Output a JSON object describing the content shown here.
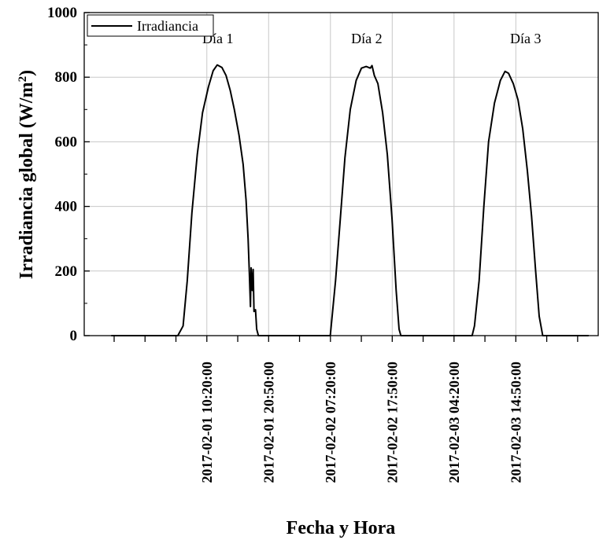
{
  "chart_data": {
    "type": "line",
    "xlabel": "Fecha y Hora",
    "ylabel": "Irradiancia global (W/m",
    "ylabel_sup": "2",
    "ylabel_end": ")",
    "x_axis_units": "hours since 2017-02-01 00:00",
    "xlim": [
      -10.5,
      76.83
    ],
    "ylim": [
      0,
      1000
    ],
    "yticks": [
      0,
      200,
      400,
      600,
      800,
      1000
    ],
    "xticks": [
      {
        "label": "2017-02-01 10:20:00",
        "hours": 10.333
      },
      {
        "label": "2017-02-01 20:50:00",
        "hours": 20.833
      },
      {
        "label": "2017-02-02 07:20:00",
        "hours": 31.333
      },
      {
        "label": "2017-02-02 17:50:00",
        "hours": 41.833
      },
      {
        "label": "2017-02-03 04:20:00",
        "hours": 52.333
      },
      {
        "label": "2017-02-03 14:50:00",
        "hours": 62.833
      }
    ],
    "grid": true,
    "legend_position": "top-left",
    "series": [
      {
        "name": "Irradiancia",
        "color": "#000000",
        "points": [
          [
            -5.9,
            0
          ],
          [
            5.4,
            0
          ],
          [
            6.3,
            30
          ],
          [
            7.0,
            170
          ],
          [
            7.8,
            380
          ],
          [
            8.7,
            560
          ],
          [
            9.6,
            690
          ],
          [
            10.6,
            770
          ],
          [
            11.4,
            820
          ],
          [
            12.1,
            838
          ],
          [
            12.9,
            830
          ],
          [
            13.6,
            805
          ],
          [
            14.3,
            760
          ],
          [
            15.0,
            700
          ],
          [
            15.8,
            620
          ],
          [
            16.5,
            530
          ],
          [
            17.0,
            420
          ],
          [
            17.35,
            300
          ],
          [
            17.55,
            200
          ],
          [
            17.75,
            90
          ],
          [
            17.85,
            210
          ],
          [
            18.05,
            140
          ],
          [
            18.2,
            205
          ],
          [
            18.35,
            75
          ],
          [
            18.6,
            80
          ],
          [
            18.8,
            20
          ],
          [
            19.1,
            0
          ],
          [
            28.8,
            0
          ],
          [
            31.3,
            0
          ],
          [
            32.2,
            170
          ],
          [
            33.0,
            360
          ],
          [
            33.8,
            550
          ],
          [
            34.7,
            700
          ],
          [
            35.7,
            790
          ],
          [
            36.6,
            828
          ],
          [
            37.4,
            833
          ],
          [
            38.1,
            828
          ],
          [
            38.4,
            836
          ],
          [
            38.8,
            805
          ],
          [
            39.4,
            780
          ],
          [
            40.2,
            690
          ],
          [
            41.0,
            560
          ],
          [
            41.8,
            360
          ],
          [
            42.5,
            140
          ],
          [
            43.0,
            20
          ],
          [
            43.3,
            0
          ],
          [
            55.4,
            0
          ],
          [
            55.8,
            30
          ],
          [
            56.6,
            170
          ],
          [
            57.4,
            400
          ],
          [
            58.2,
            600
          ],
          [
            59.2,
            720
          ],
          [
            60.2,
            790
          ],
          [
            61.0,
            818
          ],
          [
            61.6,
            812
          ],
          [
            62.4,
            780
          ],
          [
            63.2,
            730
          ],
          [
            64.0,
            640
          ],
          [
            64.8,
            510
          ],
          [
            65.5,
            370
          ],
          [
            66.2,
            200
          ],
          [
            66.8,
            60
          ],
          [
            67.4,
            0
          ],
          [
            75.2,
            0
          ]
        ]
      }
    ],
    "annotations": [
      {
        "text": "Día 1",
        "x": 12.2,
        "y": 905
      },
      {
        "text": "Día 2",
        "x": 37.5,
        "y": 905
      },
      {
        "text": "Día 3",
        "x": 64.5,
        "y": 905
      }
    ]
  }
}
